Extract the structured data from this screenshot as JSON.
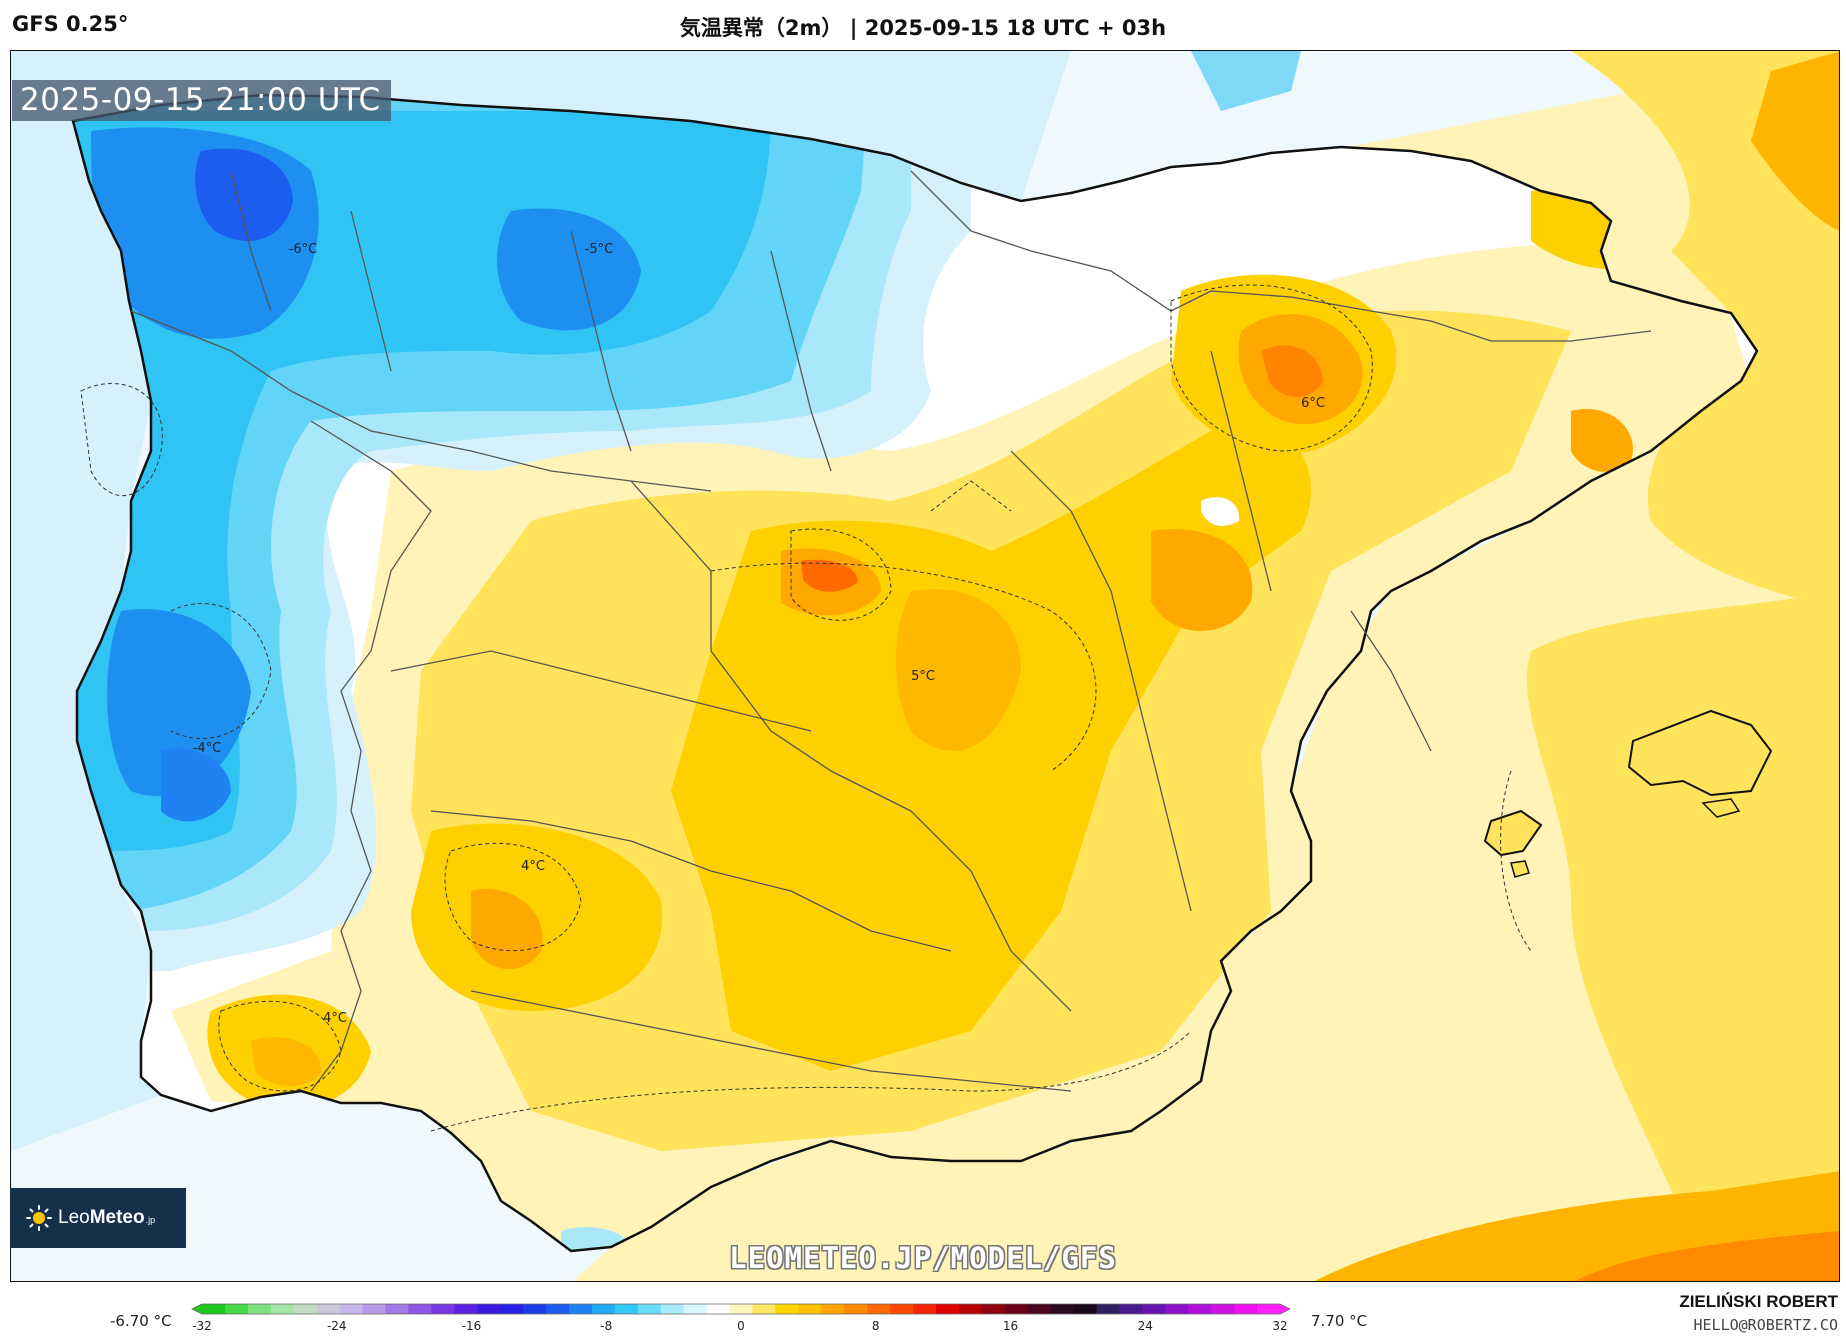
{
  "header": {
    "model": "GFS 0.25°",
    "title": "気温異常（2m） | 2025-09-15 18 UTC + 03h"
  },
  "map": {
    "valid_time": "2025-09-15 21:00 UTC",
    "labels": [
      {
        "id": "galicia",
        "text": "-6°C"
      },
      {
        "id": "cantabria",
        "text": "-5°C"
      },
      {
        "id": "portugal",
        "text": "-4°C"
      },
      {
        "id": "ebro",
        "text": "6°C"
      },
      {
        "id": "madrid",
        "text": "5°C"
      },
      {
        "id": "extremadura",
        "text": "4°C"
      },
      {
        "id": "algarve",
        "text": "4°C"
      }
    ],
    "watermark": "LEOMETEO.JP/MODEL/GFS",
    "logo": {
      "name_a": "Leo",
      "name_b": "Meteo",
      "suffix": ".jp"
    }
  },
  "legend": {
    "min_label": "-6.70 °C",
    "max_label": "7.70 °C",
    "ticks": [
      "-32",
      "-24",
      "-16",
      "-8",
      "0",
      "8",
      "16",
      "24",
      "32"
    ],
    "colors": [
      "#1ec81e",
      "#46d846",
      "#7fe07f",
      "#a5e5a5",
      "#c4dcc4",
      "#c9c9d9",
      "#c8b8ea",
      "#b89ae8",
      "#a278e6",
      "#8c55e4",
      "#7636e2",
      "#5a22e0",
      "#3c1ae0",
      "#2620e6",
      "#1c3cea",
      "#1c5cee",
      "#2082f2",
      "#22aaf4",
      "#30c8f6",
      "#66dcf8",
      "#a8ecfa",
      "#d8f6fc",
      "#ffffff",
      "#fff6c0",
      "#ffe766",
      "#ffd500",
      "#ffc000",
      "#ffa400",
      "#ff8a00",
      "#ff6a00",
      "#ff4800",
      "#f52400",
      "#e00000",
      "#b80000",
      "#900010",
      "#6a0018",
      "#4a0620",
      "#2a0a20",
      "#1a0a1a",
      "#302060",
      "#4a1a90",
      "#6a14b0",
      "#8c10c8",
      "#b010d8",
      "#d010e0",
      "#ee10ee",
      "#ff20ff"
    ]
  },
  "credit": {
    "name": "ZIELIŃSKI ROBERT",
    "email": "HELLO@ROBERTZ.CO"
  }
}
